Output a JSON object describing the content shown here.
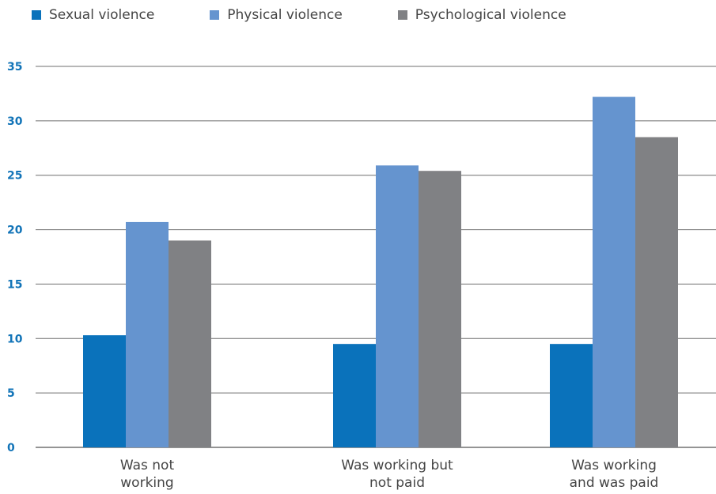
{
  "chart_data": {
    "type": "bar",
    "categories": [
      [
        "Was not",
        "working"
      ],
      [
        "Was working but",
        "not paid"
      ],
      [
        "Was working",
        "and was paid"
      ]
    ],
    "series": [
      {
        "name": "Sexual violence",
        "color": "#0a72bb",
        "values": [
          10.3,
          9.5,
          9.5
        ]
      },
      {
        "name": "Physical violence",
        "color": "#6594cf",
        "values": [
          20.7,
          25.9,
          32.2
        ]
      },
      {
        "name": "Psychological violence",
        "color": "#808184",
        "values": [
          19.0,
          25.4,
          28.5
        ]
      }
    ],
    "ylim": [
      0,
      35
    ],
    "yticks": [
      0,
      5,
      10,
      15,
      20,
      25,
      30,
      35
    ],
    "legend_position": "top-left",
    "grid": true,
    "title": "",
    "xlabel": "",
    "ylabel": ""
  }
}
